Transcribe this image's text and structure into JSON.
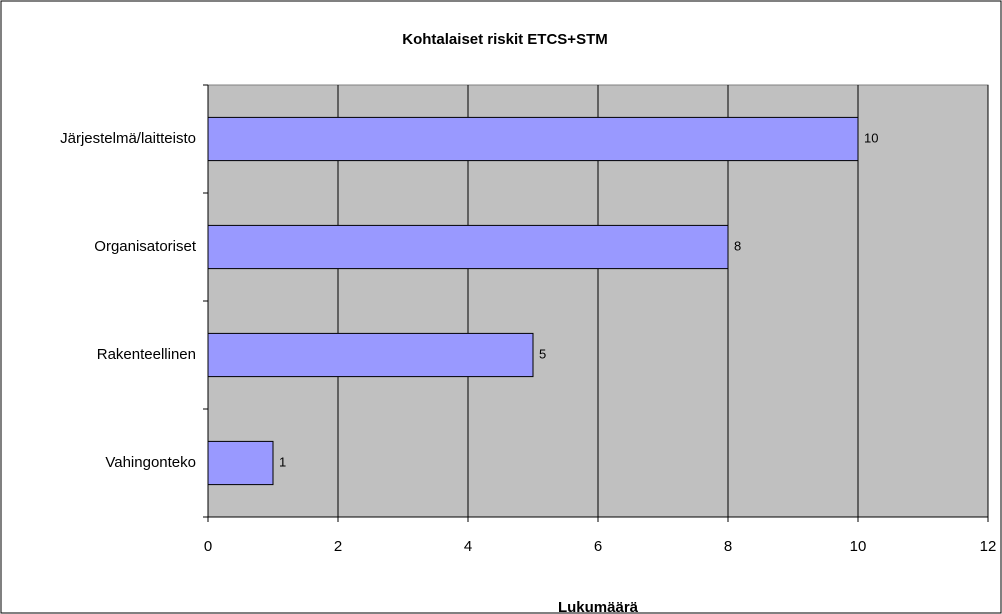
{
  "chart_data": {
    "type": "bar",
    "orientation": "horizontal",
    "title": "Kohtalaiset riskit ETCS+STM",
    "x_label": "Lukumäärä",
    "categories": [
      "Järjestelmä/laitteisto",
      "Organisatoriset",
      "Rakenteellinen",
      "Vahingonteko"
    ],
    "values": [
      10,
      8,
      5,
      1
    ],
    "color": "#9999ff",
    "xlim": [
      0,
      12
    ],
    "xticks": [
      0,
      2,
      4,
      6,
      8,
      10,
      12
    ],
    "grid": true
  }
}
